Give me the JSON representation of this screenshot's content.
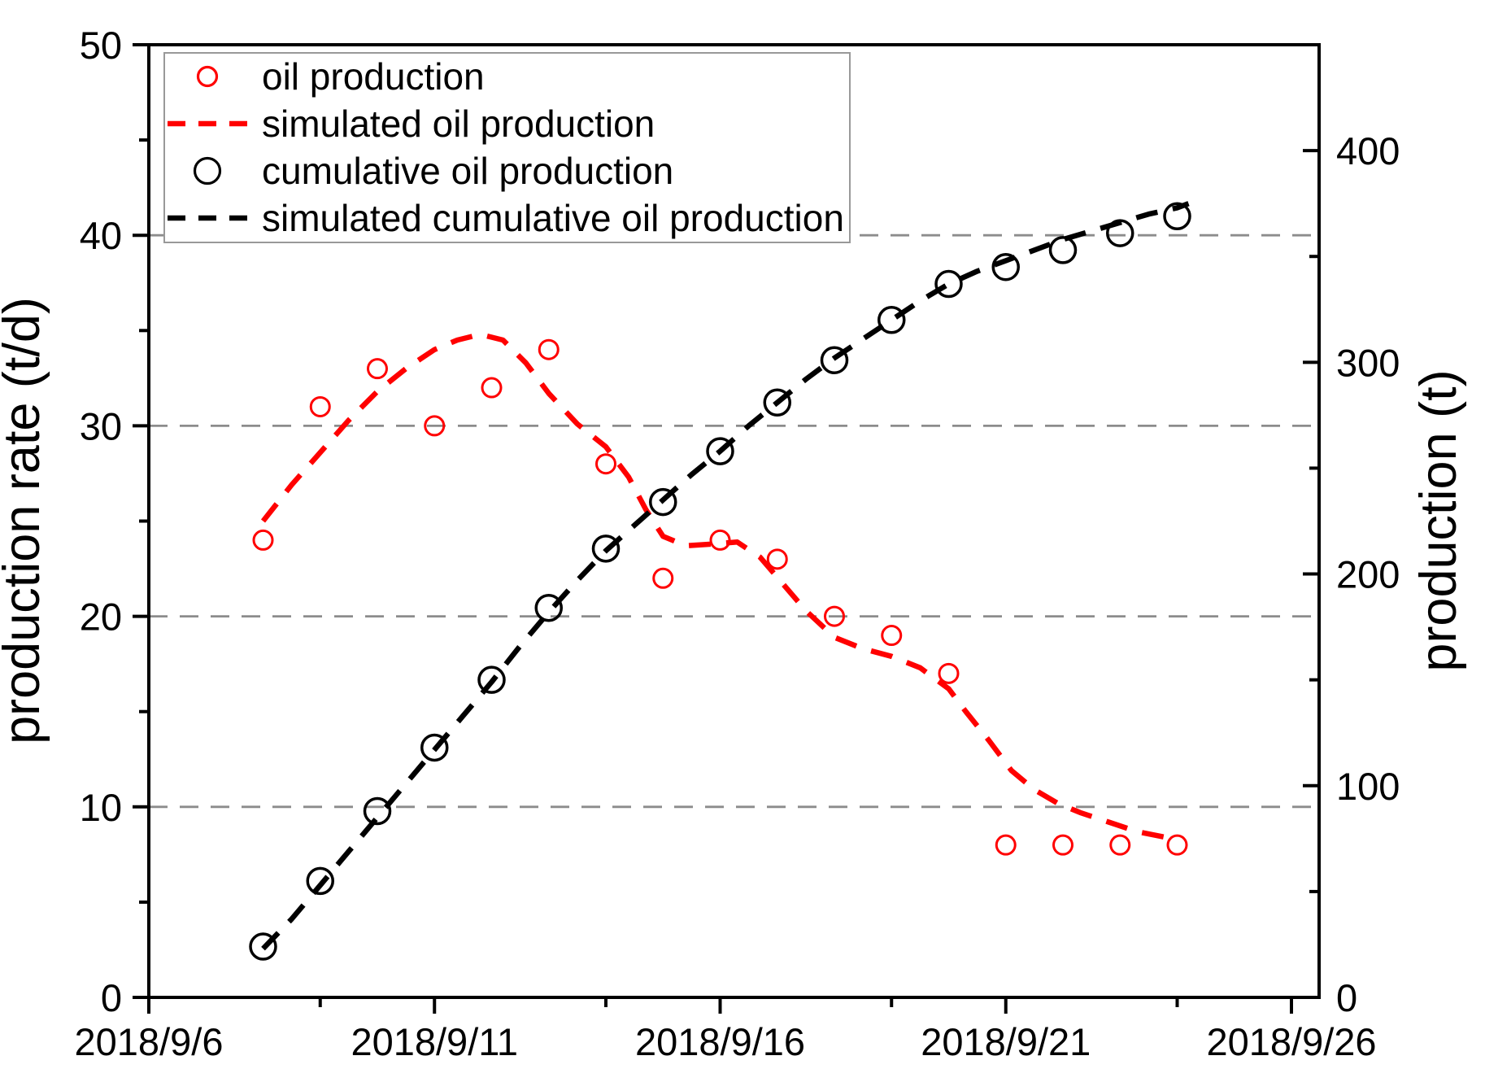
{
  "chart_data": {
    "type": "line",
    "title": "",
    "x_axis": {
      "start_date": "2018/9/6",
      "tick_labels": [
        "2018/9/6",
        "2018/9/11",
        "2018/9/16",
        "2018/9/21",
        "2018/9/26"
      ],
      "major_tick_days": [
        0,
        5,
        10,
        15,
        20
      ],
      "minor_tick_days": [
        3,
        8,
        13,
        18
      ],
      "range_days": [
        0,
        20.5
      ]
    },
    "y_axis_left": {
      "label": "production rate (t/d)",
      "tick_values": [
        0,
        10,
        20,
        30,
        40,
        50
      ],
      "minor_tick_values": [
        5,
        15,
        25,
        35,
        45
      ],
      "range": [
        0,
        50
      ],
      "gridline_values": [
        10,
        20,
        30,
        40
      ]
    },
    "y_axis_right": {
      "label": "production (t)",
      "tick_values": [
        0,
        100,
        200,
        300,
        400
      ],
      "minor_tick_values": [
        50,
        150,
        250,
        350
      ],
      "range": [
        0,
        450
      ]
    },
    "gridline_color": "#8c8c8c",
    "axis_color": "#000000",
    "series": [
      {
        "name": "oil production",
        "kind": "scatter",
        "axis": "left",
        "color": "#ff0000",
        "marker": "open-circle",
        "marker_radius": 11.5,
        "dates": [
          "2018/9/8",
          "2018/9/9",
          "2018/9/10",
          "2018/9/11",
          "2018/9/12",
          "2018/9/13",
          "2018/9/14",
          "2018/9/15",
          "2018/9/16",
          "2018/9/17",
          "2018/9/18",
          "2018/9/19",
          "2018/9/20",
          "2018/9/21",
          "2018/9/22",
          "2018/9/23",
          "2018/9/24"
        ],
        "days": [
          2,
          3,
          4,
          5,
          6,
          7,
          8,
          9,
          10,
          11,
          12,
          13,
          14,
          15,
          16,
          17,
          18
        ],
        "values": [
          24,
          31,
          33,
          30,
          32,
          34,
          28,
          22,
          24,
          23,
          20,
          19,
          17,
          8,
          8,
          8,
          8
        ]
      },
      {
        "name": "simulated oil production",
        "kind": "dashed_line",
        "axis": "left",
        "color": "#ff0000",
        "points_day_value": [
          [
            2.0,
            25.0
          ],
          [
            2.5,
            26.9
          ],
          [
            3.0,
            28.6
          ],
          [
            3.5,
            30.3
          ],
          [
            4.0,
            31.8
          ],
          [
            4.5,
            33.0
          ],
          [
            5.0,
            34.0
          ],
          [
            5.4,
            34.5
          ],
          [
            5.8,
            34.8
          ],
          [
            6.2,
            34.5
          ],
          [
            6.6,
            33.3
          ],
          [
            7.0,
            31.7
          ],
          [
            7.5,
            30.1
          ],
          [
            8.0,
            28.9
          ],
          [
            8.4,
            27.3
          ],
          [
            8.7,
            25.6
          ],
          [
            9.0,
            24.2
          ],
          [
            9.4,
            23.7
          ],
          [
            9.9,
            23.8
          ],
          [
            10.3,
            23.9
          ],
          [
            10.7,
            23.1
          ],
          [
            11.1,
            21.7
          ],
          [
            11.5,
            20.3
          ],
          [
            12.0,
            18.9
          ],
          [
            12.5,
            18.3
          ],
          [
            13.0,
            17.9
          ],
          [
            13.5,
            17.3
          ],
          [
            14.0,
            16.2
          ],
          [
            14.3,
            15.0
          ],
          [
            14.7,
            13.5
          ],
          [
            15.1,
            11.9
          ],
          [
            15.5,
            10.9
          ],
          [
            15.9,
            10.2
          ],
          [
            16.3,
            9.7
          ],
          [
            16.8,
            9.2
          ],
          [
            17.3,
            8.7
          ],
          [
            17.8,
            8.4
          ]
        ]
      },
      {
        "name": "cumulative oil production",
        "kind": "scatter",
        "axis": "right",
        "color": "#000000",
        "marker": "open-circle",
        "marker_radius": 15.5,
        "dates": [
          "2018/9/8",
          "2018/9/9",
          "2018/9/10",
          "2018/9/11",
          "2018/9/12",
          "2018/9/13",
          "2018/9/14",
          "2018/9/15",
          "2018/9/16",
          "2018/9/17",
          "2018/9/18",
          "2018/9/19",
          "2018/9/20",
          "2018/9/21",
          "2018/9/22",
          "2018/9/23",
          "2018/9/24"
        ],
        "days": [
          2,
          3,
          4,
          5,
          6,
          7,
          8,
          9,
          10,
          11,
          12,
          13,
          14,
          15,
          16,
          17,
          18
        ],
        "values": [
          24,
          55,
          88,
          118,
          150,
          184,
          212,
          234,
          258,
          281,
          301,
          320,
          337,
          345,
          353,
          361,
          369
        ]
      },
      {
        "name": "simulated cumulative oil production",
        "kind": "dashed_line",
        "axis": "right",
        "color": "#000000",
        "points_day_value": [
          [
            2.0,
            23
          ],
          [
            2.5,
            37
          ],
          [
            3.0,
            53
          ],
          [
            3.5,
            69
          ],
          [
            4.0,
            85
          ],
          [
            4.5,
            101
          ],
          [
            5.0,
            117
          ],
          [
            5.5,
            133
          ],
          [
            6.0,
            149
          ],
          [
            6.5,
            166
          ],
          [
            7.0,
            182
          ],
          [
            7.5,
            197
          ],
          [
            8.0,
            211
          ],
          [
            8.5,
            223
          ],
          [
            9.0,
            235
          ],
          [
            9.5,
            247
          ],
          [
            10.0,
            258
          ],
          [
            10.5,
            270
          ],
          [
            11.0,
            281
          ],
          [
            11.5,
            292
          ],
          [
            12.0,
            302
          ],
          [
            12.5,
            311
          ],
          [
            13.0,
            320
          ],
          [
            13.5,
            329
          ],
          [
            14.0,
            337
          ],
          [
            14.5,
            343
          ],
          [
            15.0,
            348
          ],
          [
            15.5,
            353
          ],
          [
            16.0,
            358
          ],
          [
            16.5,
            362
          ],
          [
            17.0,
            366
          ],
          [
            17.5,
            370
          ],
          [
            18.0,
            373
          ],
          [
            18.2,
            375
          ]
        ]
      }
    ],
    "legend": {
      "position": "top-left",
      "items": [
        "oil production",
        "simulated oil production",
        "cumulative oil production",
        "simulated cumulative oil production"
      ]
    }
  }
}
